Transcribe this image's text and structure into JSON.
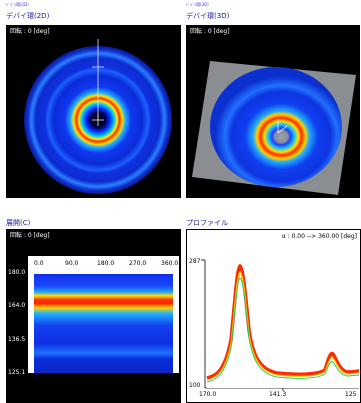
{
  "top_left": {
    "tiny_label": "ﾃﾞﾊﾞｲ環(2D)",
    "title": "デバイ環(2D)",
    "rotation": "回転 : 0 [deg]"
  },
  "top_right": {
    "tiny_label": "ﾃﾞﾊﾞｲ環(3D)",
    "title": "デバイ環(3D)",
    "rotation": "回転 : 0 [deg]"
  },
  "bottom_left": {
    "title": "展開(C)",
    "rotation": "回転 : 0 [deg]",
    "x_ticks": [
      "0.0",
      "90.0",
      "180.0",
      "270.0",
      "360.0"
    ],
    "y_ticks": [
      "180.0",
      "164.0",
      "136.5",
      "125.1"
    ]
  },
  "bottom_right": {
    "title": "プロファイル",
    "range": "α : 0.00 --> 360.00 [deg]",
    "y_ticks": [
      "287",
      "100"
    ],
    "x_ticks": [
      "170.0",
      "141.3",
      "125"
    ]
  },
  "colors": {
    "hot": "#ff3000",
    "cold": "#1030ff",
    "background": "#000000"
  }
}
